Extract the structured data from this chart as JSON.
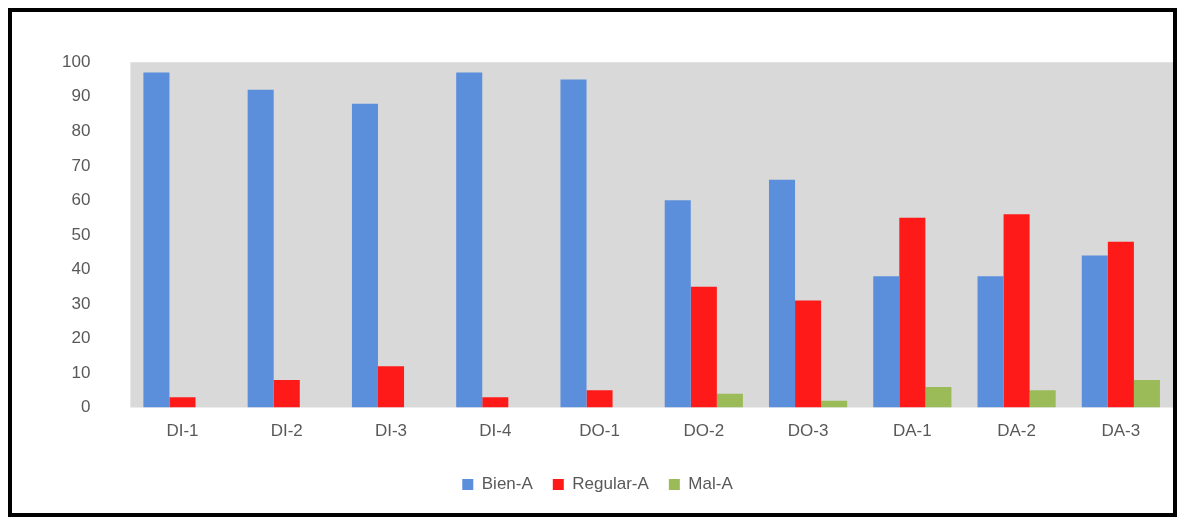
{
  "chart_data": {
    "type": "bar",
    "categories": [
      "DI-1",
      "DI-2",
      "DI-3",
      "DI-4",
      "DO-1",
      "DO-2",
      "DO-3",
      "DA-1",
      "DA-2",
      "DA-3"
    ],
    "series": [
      {
        "name": "Bien-A",
        "color": "#5b8fdc",
        "values": [
          97,
          92,
          88,
          97,
          95,
          60,
          66,
          38,
          38,
          44
        ]
      },
      {
        "name": "Regular-A",
        "color": "#ff1a1a",
        "values": [
          3,
          8,
          12,
          3,
          5,
          35,
          31,
          55,
          56,
          48
        ]
      },
      {
        "name": "Mal-A",
        "color": "#9bbb59",
        "values": [
          null,
          null,
          null,
          null,
          null,
          4,
          2,
          6,
          5,
          8
        ]
      }
    ],
    "ylim": [
      0,
      100
    ],
    "yticks": [
      0,
      10,
      20,
      30,
      40,
      50,
      60,
      70,
      80,
      90,
      100
    ],
    "grid": false,
    "legend": "bottom"
  }
}
